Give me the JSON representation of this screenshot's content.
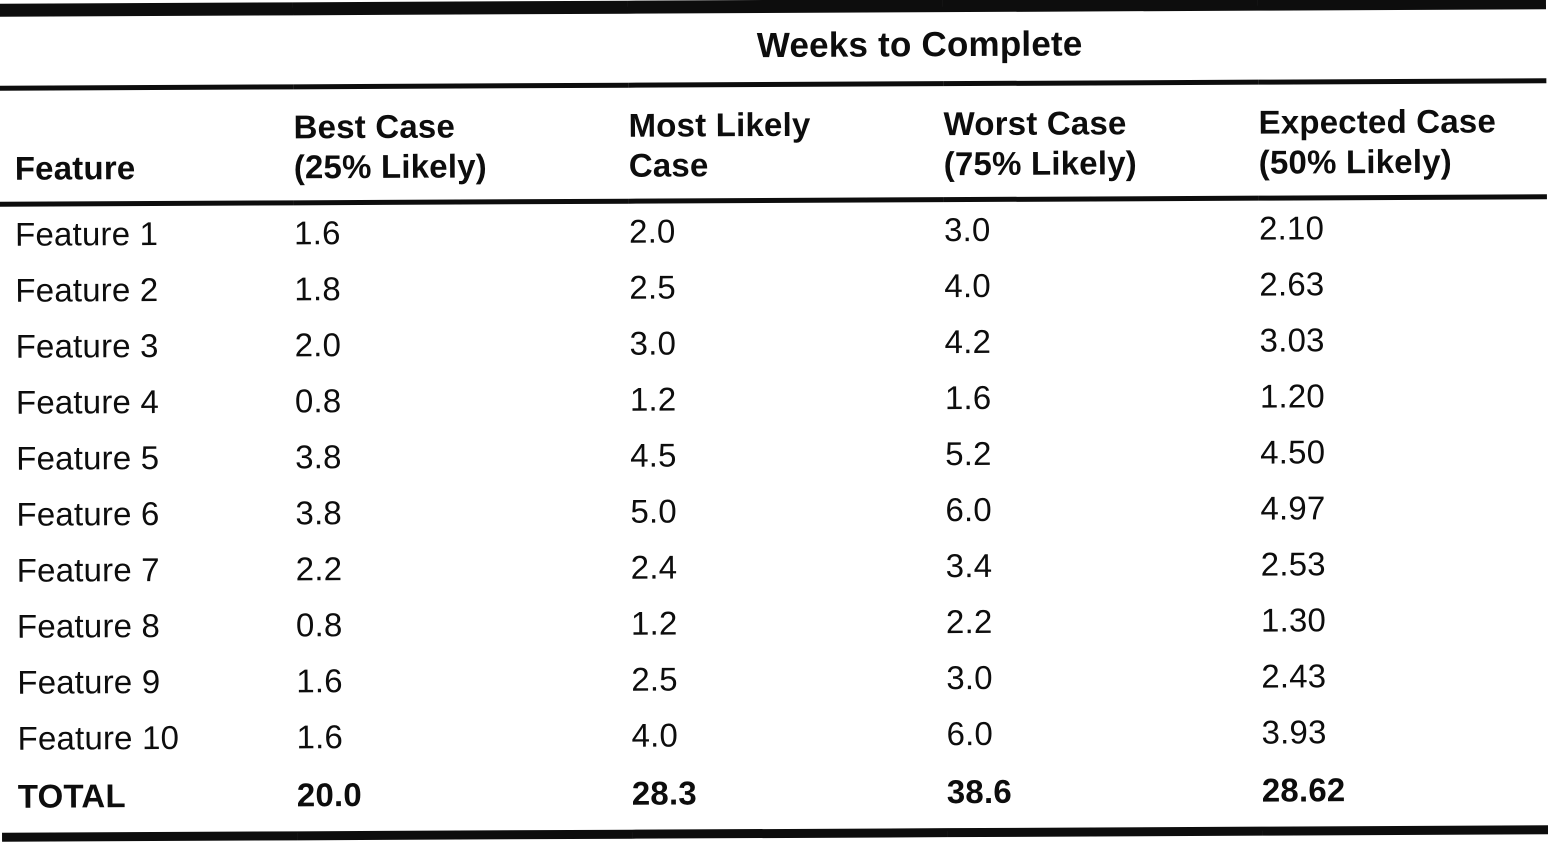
{
  "table": {
    "span_header": "Weeks to Complete",
    "columns": [
      "Feature",
      "Best Case\n(25% Likely)",
      "Most Likely\nCase",
      "Worst Case\n(75% Likely)",
      "Expected Case\n(50% Likely)"
    ],
    "rows": [
      [
        "Feature 1",
        "1.6",
        "2.0",
        "3.0",
        "2.10"
      ],
      [
        "Feature 2",
        "1.8",
        "2.5",
        "4.0",
        "2.63"
      ],
      [
        "Feature 3",
        "2.0",
        "3.0",
        "4.2",
        "3.03"
      ],
      [
        "Feature 4",
        "0.8",
        "1.2",
        "1.6",
        "1.20"
      ],
      [
        "Feature 5",
        "3.8",
        "4.5",
        "5.2",
        "4.50"
      ],
      [
        "Feature 6",
        "3.8",
        "5.0",
        "6.0",
        "4.97"
      ],
      [
        "Feature 7",
        "2.2",
        "2.4",
        "3.4",
        "2.53"
      ],
      [
        "Feature 8",
        "0.8",
        "1.2",
        "2.2",
        "1.30"
      ],
      [
        "Feature 9",
        "1.6",
        "2.5",
        "3.0",
        "2.43"
      ],
      [
        "Feature 10",
        "1.6",
        "4.0",
        "6.0",
        "3.93"
      ]
    ],
    "total_row": [
      "TOTAL",
      "20.0",
      "28.3",
      "38.6",
      "28.62"
    ]
  },
  "colors": {
    "ink": "#0d0d0d",
    "paper": "#ffffff"
  },
  "chart_data": {
    "type": "table",
    "title": "Weeks to Complete",
    "columns": [
      "Feature",
      "Best Case (25% Likely)",
      "Most Likely Case",
      "Worst Case (75% Likely)",
      "Expected Case (50% Likely)"
    ],
    "series": [
      {
        "name": "Best Case (25% Likely)",
        "values": [
          1.6,
          1.8,
          2.0,
          0.8,
          3.8,
          3.8,
          2.2,
          0.8,
          1.6,
          1.6
        ],
        "total": 20.0
      },
      {
        "name": "Most Likely Case",
        "values": [
          2.0,
          2.5,
          3.0,
          1.2,
          4.5,
          5.0,
          2.4,
          1.2,
          2.5,
          4.0
        ],
        "total": 28.3
      },
      {
        "name": "Worst Case (75% Likely)",
        "values": [
          3.0,
          4.0,
          4.2,
          1.6,
          5.2,
          6.0,
          3.4,
          2.2,
          3.0,
          6.0
        ],
        "total": 38.6
      },
      {
        "name": "Expected Case (50% Likely)",
        "values": [
          2.1,
          2.63,
          3.03,
          1.2,
          4.5,
          4.97,
          2.53,
          1.3,
          2.43,
          3.93
        ],
        "total": 28.62
      }
    ],
    "categories": [
      "Feature 1",
      "Feature 2",
      "Feature 3",
      "Feature 4",
      "Feature 5",
      "Feature 6",
      "Feature 7",
      "Feature 8",
      "Feature 9",
      "Feature 10"
    ]
  }
}
